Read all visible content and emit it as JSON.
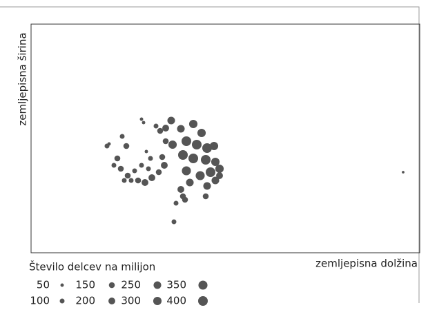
{
  "chart_data": {
    "type": "bubble",
    "xlabel": "zemljepisna dolžina",
    "ylabel": "zemljepisna širina",
    "xlim": [
      0,
      563
    ],
    "ylim": [
      0,
      332
    ],
    "grid": false,
    "series": [
      {
        "color": "#555555",
        "x": [
          110,
          113,
          138,
          132,
          160,
          163,
          181,
          187,
          195,
          203,
          217,
          235,
          247,
          195,
          205,
          225,
          240,
          255,
          265,
          220,
          235,
          253,
          267,
          273,
          260,
          245,
          225,
          230,
          217,
          223,
          210,
          255,
          267,
          273,
          253,
          207,
          220,
          125,
          120,
          130,
          140,
          145,
          155,
          165,
          175,
          185,
          193,
          190,
          170,
          160,
          150,
          135,
          167,
          173,
          539
        ],
        "values": [
          155,
          158,
          155,
          169,
          194,
          189,
          184,
          177,
          181,
          192,
          180,
          187,
          174,
          162,
          157,
          162,
          157,
          152,
          155,
          142,
          137,
          135,
          132,
          122,
          117,
          112,
          119,
          102,
          92,
          77,
          72,
          97,
          105,
          112,
          82,
          45,
          82,
          137,
          127,
          122,
          112,
          105,
          105,
          102,
          109,
          117,
          127,
          139,
          122,
          127,
          119,
          105,
          147,
          137,
          117
        ],
        "sizes": [
          100,
          50,
          150,
          100,
          50,
          50,
          100,
          150,
          200,
          250,
          250,
          300,
          300,
          150,
          300,
          400,
          400,
          400,
          300,
          400,
          400,
          400,
          300,
          300,
          400,
          350,
          350,
          250,
          200,
          150,
          100,
          250,
          250,
          200,
          150,
          100,
          150,
          150,
          100,
          150,
          150,
          100,
          150,
          200,
          200,
          150,
          200,
          150,
          100,
          100,
          100,
          100,
          50,
          100,
          30
        ]
      }
    ],
    "size_legend": {
      "title": "Število delcev  na milijon",
      "values": [
        50,
        100,
        150,
        200,
        250,
        300,
        350,
        400
      ]
    }
  }
}
